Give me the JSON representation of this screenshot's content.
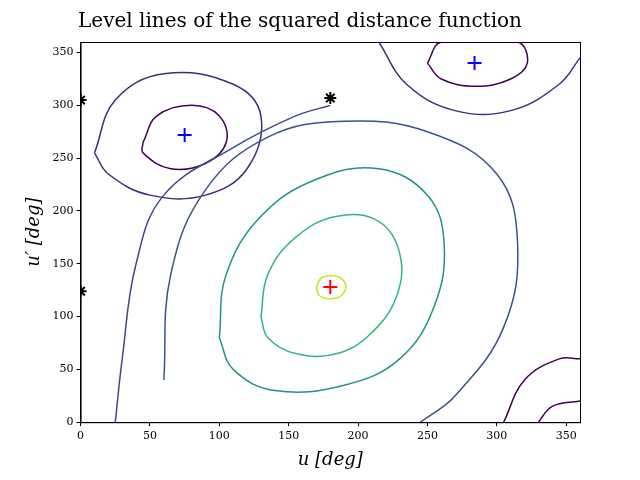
{
  "chart_data": {
    "type": "line",
    "title": "Level lines of the squared distance function",
    "x_label": "u [deg]",
    "y_label": "u′ [deg]",
    "xlim": [
      0,
      360
    ],
    "ylim": [
      0,
      360
    ],
    "xticks": [
      0,
      50,
      100,
      150,
      200,
      250,
      300,
      350
    ],
    "yticks": [
      0,
      50,
      100,
      150,
      200,
      250,
      300,
      350
    ],
    "grid": false,
    "series": [
      {
        "color": "#d0e11c",
        "line_style": "solid",
        "values": [
          [
            170,
            128
          ],
          [
            174,
            137
          ],
          [
            185,
            138
          ],
          [
            191,
            130
          ],
          [
            188,
            120
          ],
          [
            180,
            117
          ],
          [
            172,
            120
          ],
          [
            170,
            128
          ]
        ]
      },
      {
        "color": "#35b779",
        "line_style": "solid",
        "values": [
          [
            130,
            100
          ],
          [
            135,
            140
          ],
          [
            155,
            175
          ],
          [
            185,
            195
          ],
          [
            215,
            190
          ],
          [
            230,
            160
          ],
          [
            228,
            120
          ],
          [
            210,
            85
          ],
          [
            185,
            65
          ],
          [
            155,
            65
          ],
          [
            135,
            80
          ],
          [
            130,
            100
          ]
        ]
      },
      {
        "color": "#21918c",
        "line_style": "solid",
        "values": [
          [
            100,
            80
          ],
          [
            105,
            140
          ],
          [
            130,
            195
          ],
          [
            170,
            230
          ],
          [
            215,
            240
          ],
          [
            250,
            215
          ],
          [
            262,
            170
          ],
          [
            255,
            110
          ],
          [
            230,
            60
          ],
          [
            190,
            35
          ],
          [
            140,
            30
          ],
          [
            110,
            50
          ],
          [
            100,
            80
          ]
        ]
      },
      {
        "color": "#3b528b",
        "line_style": "solid",
        "values": [
          [
            60,
            40
          ],
          [
            65,
            140
          ],
          [
            90,
            220
          ],
          [
            135,
            270
          ],
          [
            190,
            285
          ],
          [
            250,
            275
          ],
          [
            300,
            235
          ],
          [
            315,
            170
          ],
          [
            305,
            90
          ],
          [
            270,
            25
          ],
          [
            245,
            0
          ]
        ]
      },
      {
        "color": "#3e4989",
        "line_style": "solid",
        "values": [
          [
            25,
            0
          ],
          [
            30,
            60
          ],
          [
            40,
            150
          ],
          [
            60,
            215
          ],
          [
            110,
            260
          ],
          [
            155,
            290
          ],
          [
            180,
            300
          ]
        ]
      },
      {
        "color": "#482878",
        "line_style": "solid",
        "values": [
          [
            10,
            255
          ],
          [
            25,
            305
          ],
          [
            60,
            330
          ],
          [
            110,
            320
          ],
          [
            130,
            290
          ],
          [
            120,
            240
          ],
          [
            90,
            215
          ],
          [
            50,
            215
          ],
          [
            20,
            235
          ],
          [
            10,
            255
          ]
        ]
      },
      {
        "color": "#440154",
        "line_style": "solid",
        "values": [
          [
            45,
            265
          ],
          [
            55,
            290
          ],
          [
            80,
            300
          ],
          [
            100,
            290
          ],
          [
            105,
            265
          ],
          [
            90,
            245
          ],
          [
            65,
            240
          ],
          [
            45,
            255
          ],
          [
            45,
            265
          ]
        ]
      },
      {
        "color": "#440154",
        "line_style": "solid",
        "values": [
          [
            250,
            340
          ],
          [
            260,
            325
          ],
          [
            285,
            318
          ],
          [
            310,
            325
          ],
          [
            322,
            340
          ],
          [
            315,
            360
          ],
          [
            260,
            360
          ],
          [
            250,
            340
          ]
        ]
      },
      {
        "color": "#482878",
        "line_style": "solid",
        "values": [
          [
            215,
            360
          ],
          [
            235,
            320
          ],
          [
            270,
            295
          ],
          [
            310,
            295
          ],
          [
            345,
            320
          ],
          [
            360,
            345
          ]
        ]
      },
      {
        "color": "#440154",
        "line_style": "solid",
        "values": [
          [
            305,
            0
          ],
          [
            320,
            40
          ],
          [
            345,
            60
          ],
          [
            360,
            60
          ]
        ]
      },
      {
        "color": "#440154",
        "line_style": "solid",
        "values": [
          [
            330,
            0
          ],
          [
            340,
            15
          ],
          [
            360,
            20
          ]
        ]
      },
      {
        "type": "scatter",
        "marker": "plus",
        "color": "#ff0000",
        "values": [
          [
            180,
            128
          ]
        ]
      },
      {
        "type": "scatter",
        "marker": "plus",
        "color": "#0000ff",
        "values": [
          [
            75,
            272
          ],
          [
            284,
            340
          ]
        ]
      },
      {
        "type": "scatter",
        "marker": "star",
        "color": "#000000",
        "values": [
          [
            180,
            307
          ],
          [
            0,
            305
          ],
          [
            0,
            124
          ]
        ]
      }
    ]
  }
}
